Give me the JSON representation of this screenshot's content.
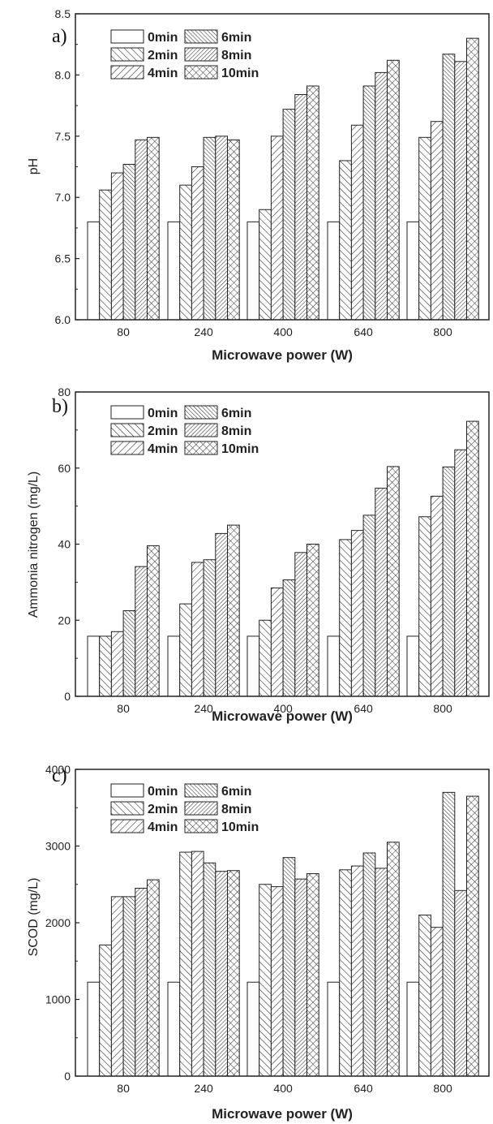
{
  "chart_data": [
    {
      "type": "bar",
      "panel_label": "a)",
      "xlabel": "Microwave power (W)",
      "ylabel": "pH",
      "categories": [
        "80",
        "240",
        "400",
        "640",
        "800"
      ],
      "ylim": [
        6.0,
        8.5
      ],
      "yticks": [
        6.0,
        6.5,
        7.0,
        7.5,
        8.0,
        8.5
      ],
      "ytick_labels": [
        "6.0",
        "6.5",
        "7.0",
        "7.5",
        "8.0",
        "8.5"
      ],
      "legend": "top-left",
      "grid": false,
      "series": [
        {
          "name": "0min",
          "pattern": "none",
          "values": [
            6.8,
            6.8,
            6.8,
            6.8,
            6.8
          ]
        },
        {
          "name": "2min",
          "pattern": "diag-fwd",
          "values": [
            7.06,
            7.1,
            6.9,
            7.3,
            7.49
          ]
        },
        {
          "name": "4min",
          "pattern": "diag-back",
          "values": [
            7.2,
            7.25,
            7.5,
            7.59,
            7.62
          ]
        },
        {
          "name": "6min",
          "pattern": "diag-fwd-dense",
          "values": [
            7.27,
            7.49,
            7.72,
            7.91,
            8.17
          ]
        },
        {
          "name": "8min",
          "pattern": "diag-back-dense",
          "values": [
            7.47,
            7.5,
            7.84,
            8.02,
            8.11
          ]
        },
        {
          "name": "10min",
          "pattern": "cross",
          "values": [
            7.49,
            7.47,
            7.91,
            8.12,
            8.3
          ]
        }
      ]
    },
    {
      "type": "bar",
      "panel_label": "b)",
      "xlabel": "Microwave power (W)",
      "ylabel": "Ammonia nitrogen (mg/L)",
      "categories": [
        "80",
        "240",
        "400",
        "640",
        "800"
      ],
      "ylim": [
        0,
        80
      ],
      "yticks": [
        0,
        20,
        40,
        60,
        80
      ],
      "ytick_labels": [
        "0",
        "20",
        "40",
        "60",
        "80"
      ],
      "legend": "top-left",
      "grid": false,
      "series": [
        {
          "name": "0min",
          "pattern": "none",
          "values": [
            15.8,
            15.8,
            15.8,
            15.8,
            15.8
          ]
        },
        {
          "name": "2min",
          "pattern": "diag-fwd",
          "values": [
            15.8,
            24.3,
            20.0,
            41.2,
            47.2
          ]
        },
        {
          "name": "4min",
          "pattern": "diag-back",
          "values": [
            17.0,
            35.2,
            28.5,
            43.6,
            52.6
          ]
        },
        {
          "name": "6min",
          "pattern": "diag-fwd-dense",
          "values": [
            22.5,
            35.9,
            30.6,
            47.6,
            60.3
          ]
        },
        {
          "name": "8min",
          "pattern": "diag-back-dense",
          "values": [
            34.1,
            42.8,
            37.8,
            54.7,
            64.8
          ]
        },
        {
          "name": "10min",
          "pattern": "cross",
          "values": [
            39.6,
            45.0,
            40.0,
            60.4,
            72.3
          ]
        }
      ]
    },
    {
      "type": "bar",
      "panel_label": "c)",
      "xlabel": "Microwave power (W)",
      "ylabel": "SCOD (mg/L)",
      "categories": [
        "80",
        "240",
        "400",
        "640",
        "800"
      ],
      "ylim": [
        0,
        4000
      ],
      "yticks": [
        0,
        1000,
        2000,
        3000,
        4000
      ],
      "ytick_labels": [
        "0",
        "1000",
        "2000",
        "3000",
        "4000"
      ],
      "legend": "top-left",
      "grid": false,
      "series": [
        {
          "name": "0min",
          "pattern": "none",
          "values": [
            1225,
            1225,
            1225,
            1225,
            1225
          ]
        },
        {
          "name": "2min",
          "pattern": "diag-fwd",
          "values": [
            1710,
            2920,
            2500,
            2690,
            2100
          ]
        },
        {
          "name": "4min",
          "pattern": "diag-back",
          "values": [
            2340,
            2930,
            2470,
            2740,
            1940
          ]
        },
        {
          "name": "6min",
          "pattern": "diag-fwd-dense",
          "values": [
            2340,
            2780,
            2850,
            2910,
            3700
          ]
        },
        {
          "name": "8min",
          "pattern": "diag-back-dense",
          "values": [
            2450,
            2670,
            2570,
            2710,
            2420
          ]
        },
        {
          "name": "10min",
          "pattern": "cross",
          "values": [
            2560,
            2680,
            2640,
            3050,
            3650
          ]
        }
      ]
    }
  ]
}
